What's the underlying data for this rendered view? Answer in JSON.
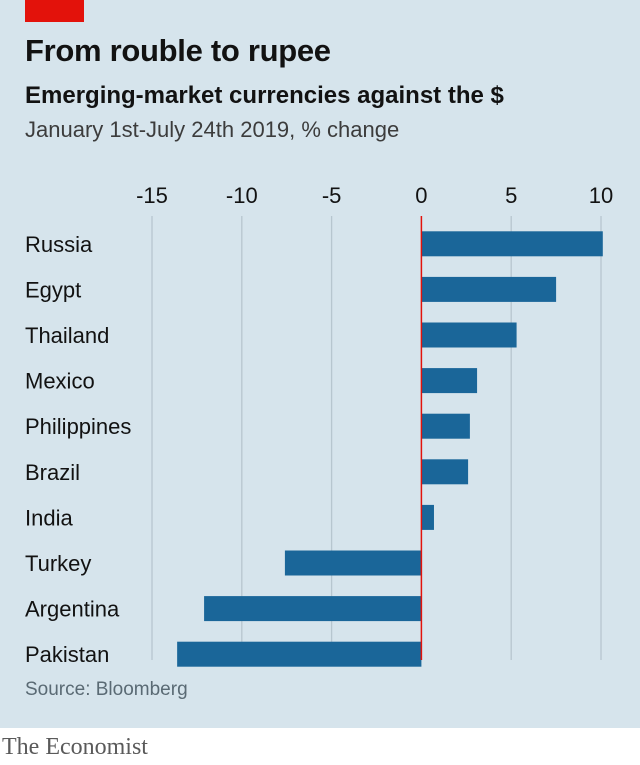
{
  "header": {
    "title": "From rouble to rupee",
    "subtitle": "Emerging-market currencies against the $",
    "period": "January 1st-July 24th 2019, % change"
  },
  "footer": {
    "source": "Source: Bloomberg",
    "brand": "The Economist"
  },
  "colors": {
    "bar": "#1a6699",
    "zero_line": "#e3120b",
    "gridline": "#b7c6cf",
    "background": "#d6e4ec",
    "accent": "#e3120b"
  },
  "chart_data": {
    "type": "bar",
    "orientation": "horizontal",
    "title": "From rouble to rupee",
    "subtitle": "Emerging-market currencies against the $",
    "xlabel": "",
    "ylabel": "",
    "xlim": [
      -15,
      10
    ],
    "x_ticks": [
      -15,
      -10,
      -5,
      0,
      5,
      10
    ],
    "x_tick_labels": [
      "-15",
      "-10",
      "-5",
      "0",
      "5",
      "10"
    ],
    "x_axis_position": "top",
    "grid": true,
    "categories": [
      "Russia",
      "Egypt",
      "Thailand",
      "Mexico",
      "Philippines",
      "Brazil",
      "India",
      "Turkey",
      "Argentina",
      "Pakistan"
    ],
    "values": [
      10.1,
      7.5,
      5.3,
      3.1,
      2.7,
      2.6,
      0.7,
      -7.6,
      -12.1,
      -13.6
    ]
  }
}
